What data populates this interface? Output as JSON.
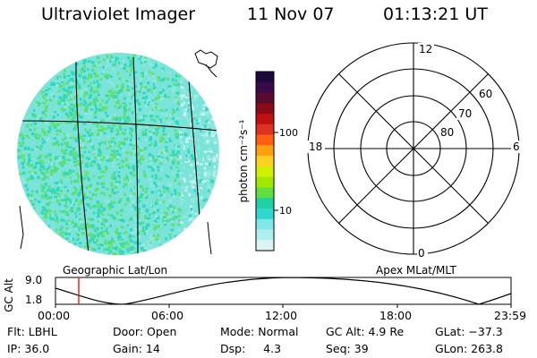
{
  "header": {
    "title": "Ultraviolet Imager",
    "date": "11 Nov 07",
    "time": "01:13:21 UT"
  },
  "colorbar": {
    "unit_label": "photon cm⁻²s⁻¹",
    "tick_100": "100",
    "tick_10": "10",
    "colors_top_to_bottom": [
      "#1a0a3a",
      "#3a0a4a",
      "#5a0a30",
      "#8a0a18",
      "#c01010",
      "#e03020",
      "#ff6010",
      "#ffa010",
      "#ffd020",
      "#d0f000",
      "#a0e800",
      "#60e040",
      "#20d0a0",
      "#30d8d0",
      "#80e8e8",
      "#b0f0f0",
      "#dcf4f4"
    ]
  },
  "left_panel": {
    "caption": "Geographic Lat/Lon",
    "map_colors": [
      "#30d8c0",
      "#60e070",
      "#90e8e0",
      "#c8f0f0"
    ]
  },
  "right_panel": {
    "caption": "Apex MLat/MLT",
    "label_12": "12",
    "label_18": "18",
    "label_6": "6",
    "label_0": "0",
    "label_60": "60",
    "label_70": "70",
    "label_80": "80"
  },
  "altitude_plot": {
    "ylabel": "GC Alt",
    "y_top": "9.0",
    "y_bottom": "1.8",
    "x_ticks": [
      "00:00",
      "06:00",
      "12:00",
      "18:00",
      "23:59"
    ],
    "marker_color": "#ff0000"
  },
  "footer": {
    "flt": "Flt: LBHL",
    "ip": "IP: 36.0",
    "door": "Door: Open",
    "gain": "Gain: 14",
    "mode": "Mode: Normal",
    "dsp": "Dsp:     4.3",
    "gcalt": "GC Alt: 4.9 Re",
    "seq": "Seq: 39",
    "glat": "GLat: −37.3",
    "glon": "GLon: 263.8"
  }
}
